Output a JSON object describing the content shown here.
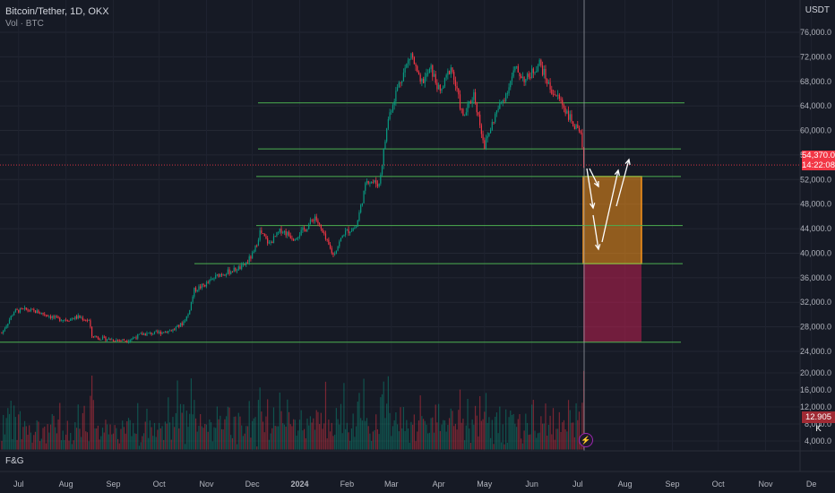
{
  "legend": {
    "symbol": "Bitcoin/Tether, 1D, OKX",
    "indicator": "Vol · BTC"
  },
  "currency": "USDT",
  "fg_label": "F&G",
  "price_badge": {
    "price": "54,370.0",
    "countdown": "14:22:08"
  },
  "volume_badge": "12.905 K",
  "event_icon": "lightning-icon",
  "colors": {
    "up": "#089981",
    "down": "#f23645",
    "level_line": "#4caf50",
    "zone_orange": "#f7931a",
    "zone_red": "#b0204e",
    "bg": "#161a25"
  },
  "chart_data": [
    {
      "type": "line",
      "title": "Bitcoin/Tether, 1D, OKX",
      "x_ticks": [
        "Jul",
        "Aug",
        "Sep",
        "Oct",
        "Nov",
        "Dec",
        "2024",
        "Feb",
        "Mar",
        "Apr",
        "May",
        "Jun",
        "Jul",
        "Aug",
        "Sep",
        "Oct",
        "Nov",
        "De"
      ],
      "y_ticks": [
        "76,000.0",
        "72,000.0",
        "68,000.0",
        "64,000.0",
        "60,000.0",
        "56,000.0",
        "52,000.0",
        "48,000.0",
        "44,000.0",
        "40,000.0",
        "36,000.0",
        "32,000.0",
        "28,000.0",
        "24,000.0"
      ],
      "ylim": [
        22000,
        78000
      ],
      "series": [
        {
          "x": [
            "2023-06-20",
            "2023-06-28",
            "2023-07-05",
            "2023-07-12",
            "2023-07-19",
            "2023-07-26",
            "2023-08-02",
            "2023-08-09",
            "2023-08-16",
            "2023-08-18",
            "2023-08-25",
            "2023-09-01",
            "2023-09-10",
            "2023-09-20",
            "2023-09-30",
            "2023-10-10",
            "2023-10-16",
            "2023-10-20",
            "2023-10-24",
            "2023-11-01",
            "2023-11-09",
            "2023-11-16",
            "2023-11-25",
            "2023-12-02",
            "2023-12-06",
            "2023-12-12",
            "2023-12-20",
            "2023-12-28",
            "2024-01-05",
            "2024-01-11",
            "2024-01-17",
            "2024-01-23",
            "2024-01-30",
            "2024-02-07",
            "2024-02-14",
            "2024-02-22",
            "2024-02-28",
            "2024-03-05",
            "2024-03-10",
            "2024-03-14",
            "2024-03-20",
            "2024-03-27",
            "2024-04-02",
            "2024-04-09",
            "2024-04-17",
            "2024-04-24",
            "2024-05-01",
            "2024-05-08",
            "2024-05-15",
            "2024-05-21",
            "2024-05-28",
            "2024-06-06",
            "2024-06-13",
            "2024-06-20",
            "2024-06-27",
            "2024-07-03",
            "2024-07-05"
          ],
          "values": [
            27000,
            30500,
            30800,
            30500,
            30000,
            29300,
            29200,
            29600,
            29000,
            26500,
            26100,
            25900,
            25800,
            26800,
            27000,
            27500,
            28500,
            30000,
            34000,
            35000,
            36500,
            37000,
            37800,
            40000,
            43500,
            41500,
            43800,
            42500,
            44000,
            46000,
            42700,
            39700,
            43300,
            44300,
            52000,
            51200,
            62000,
            67000,
            70000,
            72500,
            67500,
            70000,
            66000,
            70500,
            62000,
            66000,
            57500,
            62500,
            66000,
            70000,
            68200,
            71000,
            66800,
            64800,
            61500,
            59000,
            54370
          ]
        }
      ]
    },
    {
      "type": "bar",
      "title": "Vol · BTC",
      "y_ticks": [
        "20,000.0",
        "16,000.0",
        "12,000.0",
        "8,000.0",
        "4,000.0"
      ],
      "ylim": [
        2000,
        24000
      ],
      "last_value": "12.905 K"
    }
  ],
  "annotations": {
    "levels": [
      64500,
      57000,
      52500,
      44500,
      38300,
      25500
    ],
    "orange_zone": [
      38300,
      52500
    ],
    "red_zone": [
      25500,
      38300
    ],
    "current_price": 54370
  }
}
